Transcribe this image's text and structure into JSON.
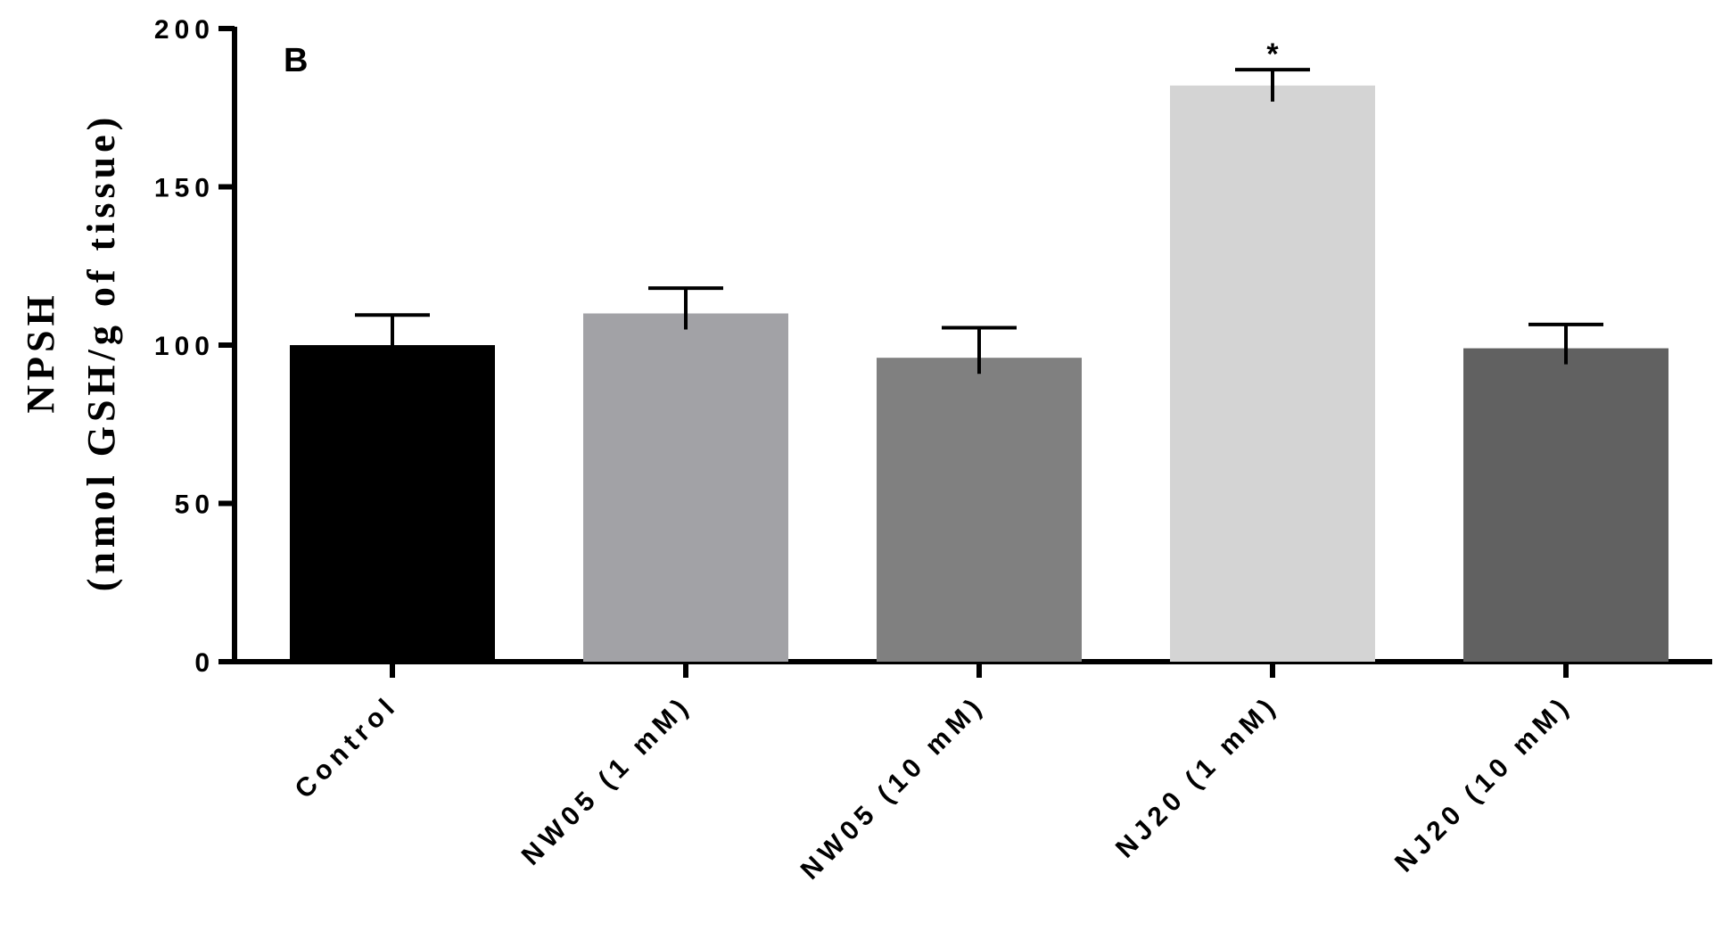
{
  "chart_data": {
    "type": "bar",
    "panel_label": "B",
    "title": "",
    "xlabel": "",
    "ylabel": [
      "NPSH",
      "(nmol GSH/g of tissue)"
    ],
    "ylim": [
      0,
      200
    ],
    "yticks": [
      0,
      50,
      100,
      150,
      200
    ],
    "categories": [
      "Control",
      "NW05 (1 mM)",
      "NW05 (10 mM)",
      "NJ20 (1 mM)",
      "NJ20 (10 mM)"
    ],
    "values": [
      100,
      110,
      96,
      182,
      99
    ],
    "errors": [
      9.5,
      8,
      9.5,
      5,
      7.5
    ],
    "colors": [
      "#000000",
      "#a2a2a6",
      "#808080",
      "#d4d4d4",
      "#616161"
    ],
    "annotations": [
      "",
      "",
      "",
      "*",
      ""
    ],
    "grid": false,
    "legend": "none"
  }
}
